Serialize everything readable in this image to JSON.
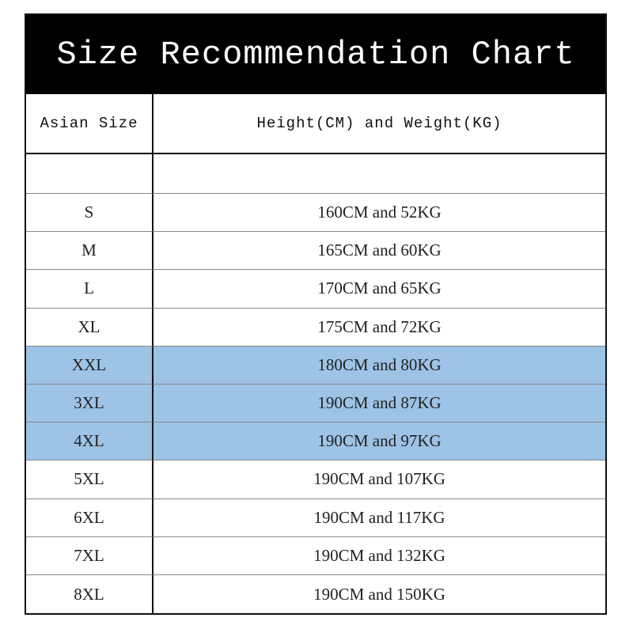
{
  "title": "Size Recommendation Chart",
  "table": {
    "header": [
      "Asian Size",
      "Height(CM) and Weight(KG)"
    ],
    "rows": [
      {
        "size": "S",
        "measure": "160CM and 52KG",
        "color": "#ffffff"
      },
      {
        "size": "M",
        "measure": "165CM and 60KG",
        "color": "#ffffff"
      },
      {
        "size": "L",
        "measure": "170CM and 65KG",
        "color": "#ffffff"
      },
      {
        "size": "XL",
        "measure": "175CM and 72KG",
        "color": "#ffffff"
      },
      {
        "size": "XXL",
        "measure": "180CM and 80KG",
        "color": "#9dc3e6"
      },
      {
        "size": "3XL",
        "measure": "190CM and 87KG",
        "color": "#9dc3e6"
      },
      {
        "size": "4XL",
        "measure": "190CM and 97KG",
        "color": "#9dc3e6"
      },
      {
        "size": "5XL",
        "measure": "190CM and 107KG",
        "color": "#ffffff"
      },
      {
        "size": "6XL",
        "measure": "190CM and 117KG",
        "color": "#ffffff"
      },
      {
        "size": "7XL",
        "measure": "190CM and 132KG",
        "color": "#ffffff"
      },
      {
        "size": "8XL",
        "measure": "190CM and 150KG",
        "color": "#ffffff"
      }
    ]
  }
}
